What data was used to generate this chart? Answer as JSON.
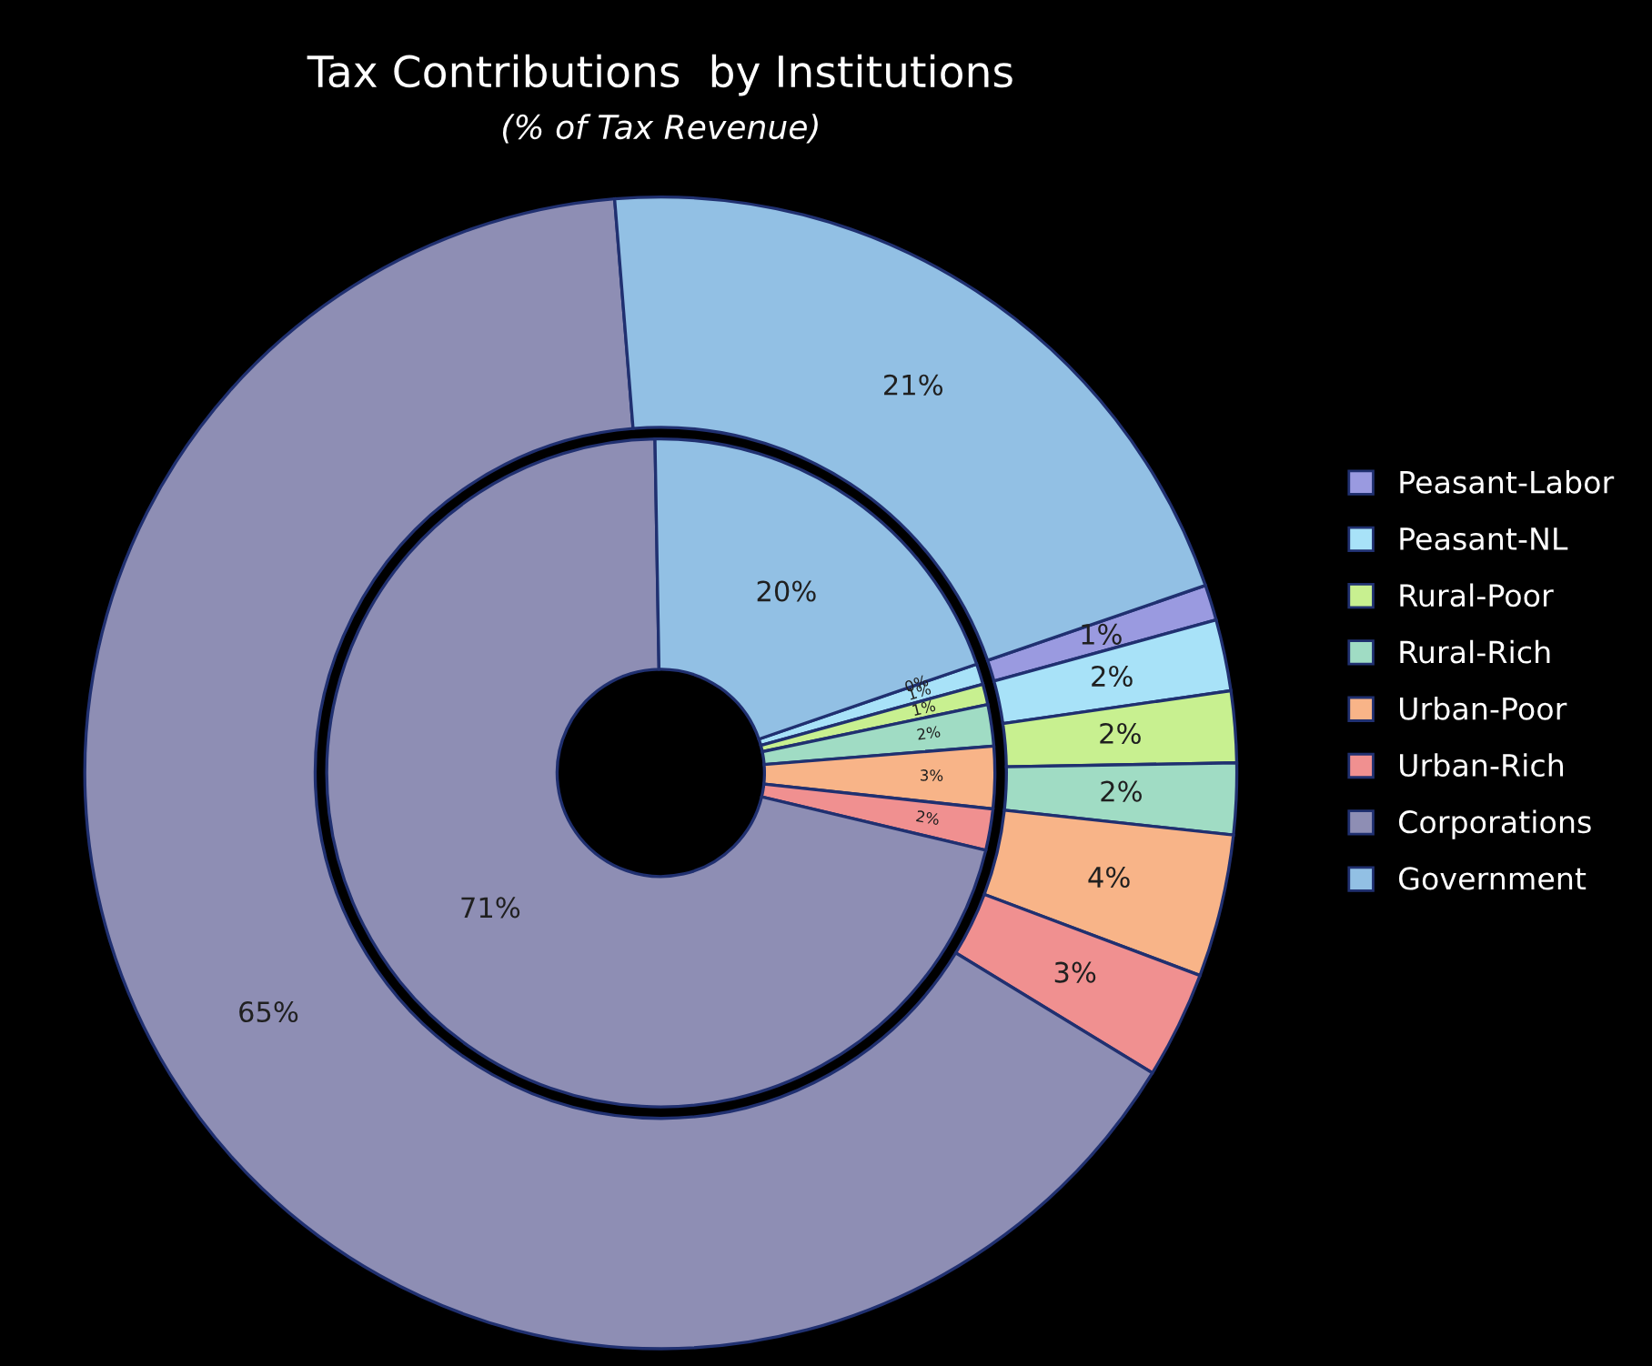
{
  "chart_data": {
    "type": "donut",
    "title": "Tax Contributions  by Institutions",
    "subtitle": "(% of Tax Revenue)",
    "categories": [
      "Peasant-Labor",
      "Peasant-NL",
      "Rural-Poor",
      "Rural-Rich",
      "Urban-Poor",
      "Urban-Rich",
      "Corporations",
      "Government"
    ],
    "colors": [
      "#9a9ae0",
      "#a8e2f8",
      "#c8f090",
      "#a0dcc4",
      "#f8b488",
      "#f09090",
      "#8e8eb4",
      "#92c0e4"
    ],
    "series": [
      {
        "values": [
          1,
          2,
          2,
          2,
          4,
          3,
          65,
          21
        ],
        "value_labels": [
          "1%",
          "2%",
          "2%",
          "2%",
          "4%",
          "3%",
          "65%",
          "21%"
        ]
      },
      {
        "values": [
          0,
          1,
          1,
          2,
          3,
          2,
          71,
          20
        ],
        "value_labels": [
          "0%",
          "1%",
          "1%",
          "2%",
          "3%",
          "2%",
          "71%",
          "20%"
        ]
      }
    ],
    "legend": "right"
  }
}
